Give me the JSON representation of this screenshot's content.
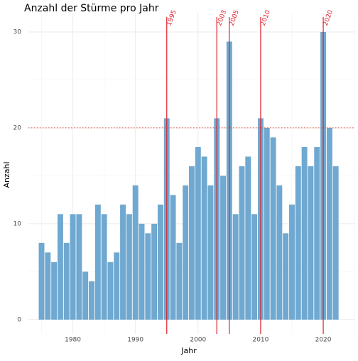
{
  "chart_data": {
    "type": "bar",
    "title": "Anzahl der Stürme pro Jahr",
    "xlabel": "Jahr",
    "ylabel": "Anzahl",
    "x": [
      1975,
      1976,
      1977,
      1978,
      1979,
      1980,
      1981,
      1982,
      1983,
      1984,
      1985,
      1986,
      1987,
      1988,
      1989,
      1990,
      1991,
      1992,
      1993,
      1994,
      1995,
      1996,
      1997,
      1998,
      1999,
      2000,
      2001,
      2002,
      2003,
      2004,
      2005,
      2006,
      2007,
      2008,
      2009,
      2010,
      2011,
      2012,
      2013,
      2014,
      2015,
      2016,
      2017,
      2018,
      2019,
      2020,
      2021,
      2022
    ],
    "values": [
      8,
      7,
      6,
      11,
      8,
      11,
      11,
      5,
      4,
      12,
      11,
      6,
      7,
      12,
      11,
      14,
      10,
      9,
      10,
      12,
      21,
      13,
      8,
      14,
      16,
      18,
      17,
      14,
      21,
      15,
      29,
      11,
      16,
      17,
      11,
      21,
      20,
      19,
      14,
      9,
      12,
      16,
      18,
      16,
      18,
      30,
      20,
      16
    ],
    "color": "#6fa8d0",
    "xlim": [
      1972.9,
      2025.1
    ],
    "ylim": [
      -1.5,
      32
    ],
    "xticks": [
      1980,
      1990,
      2000,
      2010,
      2020
    ],
    "yticks": [
      0,
      10,
      20,
      30
    ],
    "xticks_minor": [
      1975,
      1985,
      1995,
      2005,
      2015,
      2025
    ],
    "yticks_minor": [
      5,
      15,
      25
    ],
    "grid": true,
    "vlines": [
      1995,
      2003,
      2005,
      2010,
      2020
    ],
    "vline_color": "#e0202a",
    "hline": 20,
    "hline_color": "#e0503a"
  }
}
